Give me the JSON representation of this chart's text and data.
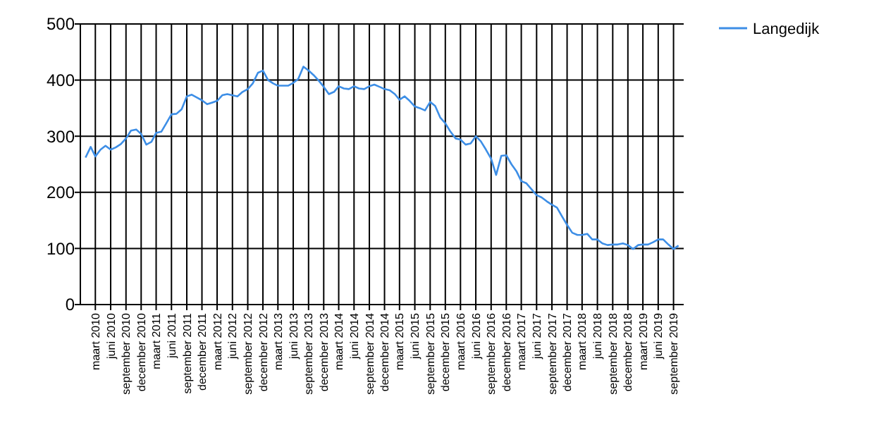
{
  "chart_data": {
    "type": "line",
    "x": [
      "2010-01",
      "2010-02",
      "2010-03",
      "2010-04",
      "2010-05",
      "2010-06",
      "2010-07",
      "2010-08",
      "2010-09",
      "2010-10",
      "2010-11",
      "2010-12",
      "2011-01",
      "2011-02",
      "2011-03",
      "2011-04",
      "2011-05",
      "2011-06",
      "2011-07",
      "2011-08",
      "2011-09",
      "2011-10",
      "2011-11",
      "2011-12",
      "2012-01",
      "2012-02",
      "2012-03",
      "2012-04",
      "2012-05",
      "2012-07",
      "2012-08",
      "2012-09",
      "2012-10",
      "2012-11",
      "2012-12",
      "2013-01",
      "2013-02",
      "2013-03",
      "2013-04",
      "2013-05",
      "2013-06",
      "2013-07",
      "2013-08",
      "2013-09",
      "2013-10",
      "2013-11",
      "2013-12",
      "2014-01",
      "2014-02",
      "2014-03",
      "2014-04",
      "2014-05",
      "2014-06",
      "2014-07",
      "2014-08",
      "2014-09",
      "2014-10",
      "2014-11",
      "2014-12",
      "2015-01",
      "2015-02",
      "2015-03",
      "2015-04",
      "2015-05",
      "2015-06",
      "2015-07",
      "2015-08",
      "2015-09",
      "2015-10",
      "2015-11",
      "2015-12",
      "2016-01",
      "2016-02",
      "2016-03",
      "2016-04",
      "2016-05",
      "2016-06",
      "2016-07",
      "2016-08",
      "2016-09",
      "2016-10",
      "2016-11",
      "2016-12",
      "2017-01",
      "2017-02",
      "2017-03",
      "2017-04",
      "2017-06",
      "2017-07",
      "2017-08",
      "2017-09",
      "2017-10",
      "2017-11",
      "2017-12",
      "2018-01",
      "2018-02",
      "2018-03",
      "2018-04",
      "2018-05",
      "2018-06",
      "2018-07",
      "2018-08",
      "2018-09",
      "2018-10",
      "2018-11",
      "2018-12",
      "2019-01",
      "2019-02",
      "2019-03",
      "2019-04",
      "2019-05",
      "2019-06",
      "2019-07",
      "2019-08",
      "2019-09",
      "2019-10"
    ],
    "series": [
      {
        "name": "Langedijk",
        "color": "#3d8ee6",
        "values": [
          262,
          281,
          264,
          276,
          283,
          276,
          280,
          286,
          296,
          310,
          312,
          304,
          285,
          290,
          306,
          308,
          323,
          339,
          340,
          348,
          371,
          374,
          369,
          364,
          357,
          360,
          363,
          373,
          375,
          371,
          379,
          384,
          394,
          413,
          417,
          400,
          394,
          390,
          390,
          390,
          395,
          402,
          424,
          417,
          409,
          399,
          388,
          375,
          379,
          389,
          385,
          384,
          389,
          385,
          384,
          389,
          392,
          388,
          384,
          382,
          375,
          365,
          371,
          363,
          353,
          350,
          346,
          361,
          354,
          333,
          323,
          308,
          296,
          294,
          285,
          287,
          300,
          291,
          276,
          260,
          231,
          265,
          266,
          250,
          237,
          220,
          216,
          195,
          191,
          184,
          178,
          173,
          157,
          142,
          128,
          124,
          124,
          126,
          116,
          116,
          109,
          106,
          107,
          107,
          109,
          106,
          99,
          106,
          107,
          107,
          111,
          116,
          116,
          107,
          99,
          105
        ]
      }
    ],
    "xlim": [
      "2009-12",
      "2019-11"
    ],
    "xticks": [
      {
        "value": "2010-03",
        "label": "maart 2010"
      },
      {
        "value": "2010-06",
        "label": "juni 2010"
      },
      {
        "value": "2010-09",
        "label": "september 2010"
      },
      {
        "value": "2010-12",
        "label": "december 2010"
      },
      {
        "value": "2011-03",
        "label": "maart 2011"
      },
      {
        "value": "2011-06",
        "label": "juni 2011"
      },
      {
        "value": "2011-09",
        "label": "september 2011"
      },
      {
        "value": "2011-12",
        "label": "december 2011"
      },
      {
        "value": "2012-03",
        "label": "maart 2012"
      },
      {
        "value": "2012-06",
        "label": "juni 2012"
      },
      {
        "value": "2012-09",
        "label": "september 2012"
      },
      {
        "value": "2012-12",
        "label": "december 2012"
      },
      {
        "value": "2013-03",
        "label": "maart 2013"
      },
      {
        "value": "2013-06",
        "label": "juni 2013"
      },
      {
        "value": "2013-09",
        "label": "september 2013"
      },
      {
        "value": "2013-12",
        "label": "december 2013"
      },
      {
        "value": "2014-03",
        "label": "maart 2014"
      },
      {
        "value": "2014-06",
        "label": "juni 2014"
      },
      {
        "value": "2014-09",
        "label": "september 2014"
      },
      {
        "value": "2014-12",
        "label": "december 2014"
      },
      {
        "value": "2015-03",
        "label": "maart 2015"
      },
      {
        "value": "2015-06",
        "label": "juni 2015"
      },
      {
        "value": "2015-09",
        "label": "september 2015"
      },
      {
        "value": "2015-12",
        "label": "december 2015"
      },
      {
        "value": "2016-03",
        "label": "maart 2016"
      },
      {
        "value": "2016-06",
        "label": "juni 2016"
      },
      {
        "value": "2016-09",
        "label": "september 2016"
      },
      {
        "value": "2016-12",
        "label": "december 2016"
      },
      {
        "value": "2017-03",
        "label": "maart 2017"
      },
      {
        "value": "2017-06",
        "label": "juni 2017"
      },
      {
        "value": "2017-09",
        "label": "september 2017"
      },
      {
        "value": "2017-12",
        "label": "december 2017"
      },
      {
        "value": "2018-03",
        "label": "maart 2018"
      },
      {
        "value": "2018-06",
        "label": "juni 2018"
      },
      {
        "value": "2018-09",
        "label": "september 2018"
      },
      {
        "value": "2018-12",
        "label": "december 2018"
      },
      {
        "value": "2019-03",
        "label": "maart 2019"
      },
      {
        "value": "2019-06",
        "label": "juni 2019"
      },
      {
        "value": "2019-09",
        "label": "september 2019"
      }
    ],
    "ylim": [
      0,
      500
    ],
    "yticks": [
      0,
      100,
      200,
      300,
      400,
      500
    ],
    "grid": true,
    "legend": "top right"
  }
}
